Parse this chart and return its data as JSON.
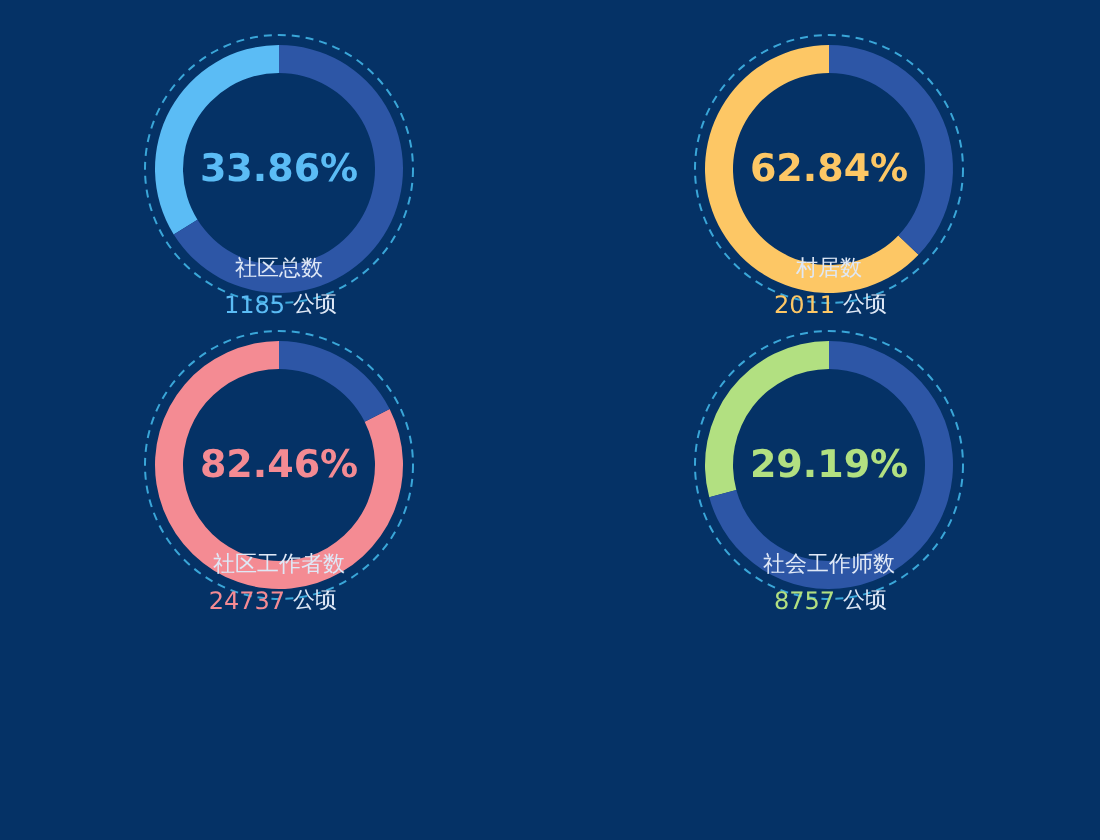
{
  "chart_data": [
    {
      "type": "donut",
      "title": "社区总数",
      "categories": [
        null,
        null
      ],
      "values": [
        33.86,
        66.14
      ],
      "colors": [
        "#5bbcf5",
        "#2d56a6"
      ],
      "annotations": [
        "33.86%",
        "1185 公顷"
      ]
    },
    {
      "type": "donut",
      "title": "村居数",
      "categories": [
        null,
        null
      ],
      "values": [
        62.84,
        37.16
      ],
      "colors": [
        "#fdc765",
        "#2d56a6"
      ],
      "annotations": [
        "62.84%",
        "2011 公顷"
      ]
    },
    {
      "type": "donut",
      "title": "社区工作者数",
      "categories": [
        null,
        null
      ],
      "values": [
        82.46,
        17.54
      ],
      "colors": [
        "#f48b93",
        "#2d56a6"
      ],
      "annotations": [
        "82.46%",
        "24737 公顷"
      ]
    },
    {
      "type": "donut",
      "title": "社会工作师数",
      "categories": [
        null,
        null
      ],
      "values": [
        29.19,
        70.81
      ],
      "colors": [
        "#b2e081",
        "#2d56a6"
      ],
      "annotations": [
        "29.19%",
        "8757 公顷"
      ]
    }
  ]
}
